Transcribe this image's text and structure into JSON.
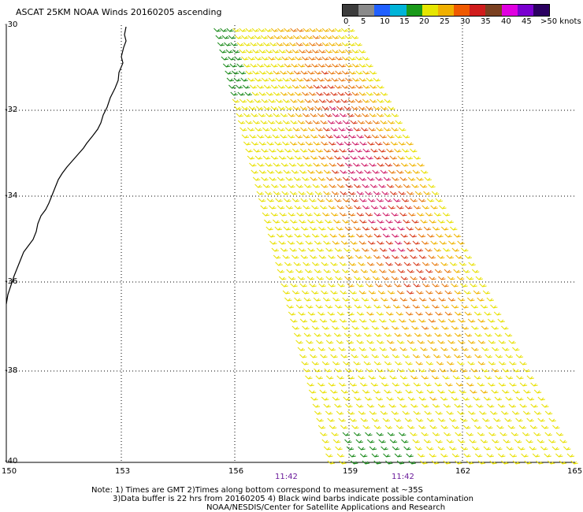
{
  "title": "ASCAT 25KM NOAA Winds 20160205 ascending",
  "legend": {
    "labels": [
      "0",
      "5",
      "10",
      "15",
      "20",
      "25",
      "30",
      "35",
      "40",
      "45",
      ">50 knots"
    ],
    "colors": [
      "#3c3c3c",
      "#8a8a8a",
      "#2060ff",
      "#00b4d8",
      "#1a9a1a",
      "#e6e600",
      "#f0b000",
      "#f05a00",
      "#d01c1c",
      "#7a4020",
      "#e000e0",
      "#7a00d0",
      "#2a0060"
    ]
  },
  "map": {
    "lat_labels": [
      "-30",
      "-32",
      "-34",
      "-36",
      "-38",
      "-40"
    ],
    "lon_labels": [
      "150",
      "153",
      "156",
      "159",
      "162",
      "165"
    ],
    "time_labels": [
      "11:42",
      "11:42"
    ]
  },
  "notes": [
    "Note: 1) Times are GMT 2)Times along bottom correspond to measurement at ~35S",
    "3)Data buffer is 22 hrs from 20160205 4) Black wind barbs indicate possible contamination",
    "NOAA/NESDIS/Center for Satellite Applications and Research"
  ]
}
